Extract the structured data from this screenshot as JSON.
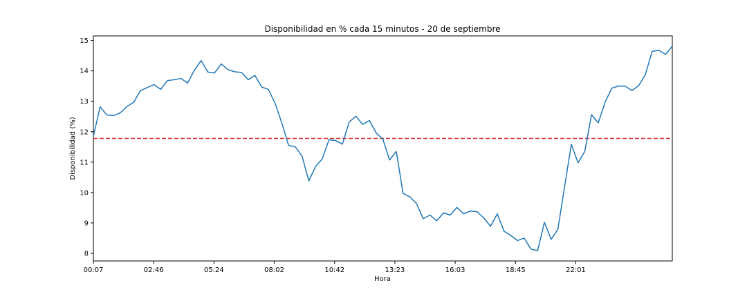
{
  "chart_data": {
    "type": "line",
    "title": "Disponibilidad en % cada 15 minutos - 20 de septiembre",
    "xlabel": "Hora",
    "ylabel": "Disponibilidad (%)",
    "x_tick_labels": [
      "00:07",
      "02:46",
      "05:24",
      "08:02",
      "10:42",
      "13:23",
      "16:03",
      "18:45",
      "22:01"
    ],
    "y_ticks": [
      8,
      9,
      10,
      11,
      12,
      13,
      14,
      15
    ],
    "ylim": [
      7.75,
      15.15
    ],
    "grid": false,
    "series": [
      {
        "color": "#1f77b4",
        "values": [
          11.85,
          12.82,
          12.55,
          12.53,
          12.62,
          12.83,
          12.97,
          13.35,
          13.45,
          13.55,
          13.39,
          13.68,
          13.71,
          13.75,
          13.6,
          14.02,
          14.34,
          13.96,
          13.93,
          14.23,
          14.04,
          13.97,
          13.95,
          13.71,
          13.85,
          13.47,
          13.39,
          12.93,
          12.28,
          11.55,
          11.5,
          11.2,
          10.38,
          10.85,
          11.11,
          11.73,
          11.71,
          11.59,
          12.32,
          12.51,
          12.24,
          12.37,
          11.96,
          11.76,
          11.07,
          11.35,
          9.97,
          9.86,
          9.64,
          9.14,
          9.26,
          9.07,
          9.33,
          9.26,
          9.51,
          9.3,
          9.39,
          9.37,
          9.16,
          8.89,
          9.3,
          8.73,
          8.59,
          8.42,
          8.5,
          8.14,
          8.09,
          9.02,
          8.46,
          8.79,
          10.19,
          11.58,
          10.98,
          11.35,
          12.56,
          12.29,
          12.96,
          13.43,
          13.5,
          13.5,
          13.35,
          13.51,
          13.88,
          14.64,
          14.68,
          14.54,
          14.81
        ]
      }
    ],
    "reference_line": {
      "y": 11.78,
      "color": "#d62728",
      "style": "dashed"
    }
  }
}
